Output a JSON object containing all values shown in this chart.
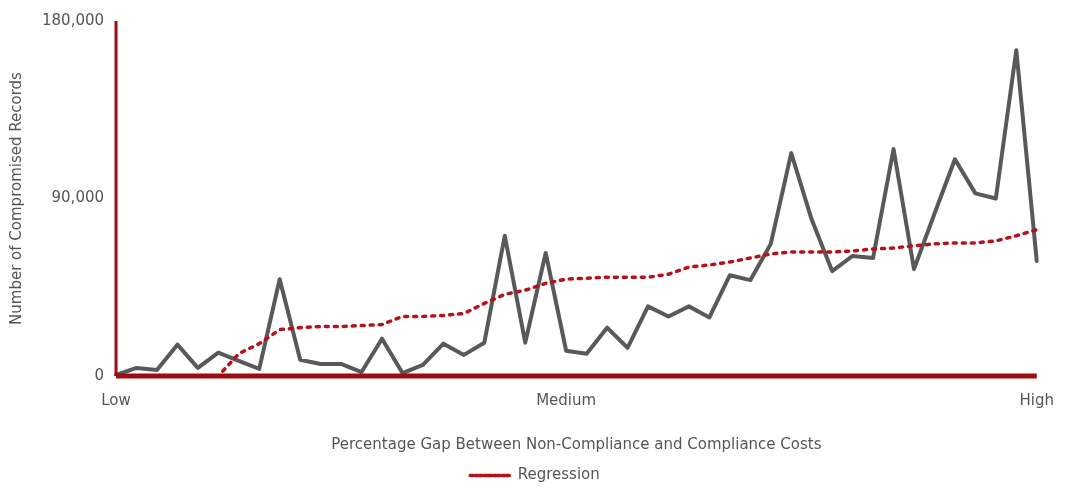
{
  "chart_data": {
    "type": "line",
    "xlabel": "Percentage Gap Between Non-Compliance and Compliance Costs",
    "ylabel": "Number of Compromised Records",
    "categories": [
      "Low",
      null,
      null,
      null,
      null,
      null,
      null,
      null,
      null,
      null,
      null,
      null,
      null,
      null,
      null,
      null,
      null,
      null,
      null,
      null,
      null,
      null,
      "Medium",
      null,
      null,
      null,
      null,
      null,
      null,
      null,
      null,
      null,
      null,
      null,
      null,
      null,
      null,
      null,
      null,
      null,
      null,
      null,
      null,
      null,
      null,
      "High"
    ],
    "series": [
      {
        "color": "#58595b",
        "line_style": "solid",
        "values": [
          500,
          4100,
          3100,
          15900,
          4100,
          11800,
          7700,
          3600,
          49100,
          8200,
          6100,
          6100,
          2000,
          18900,
          1500,
          5600,
          16400,
          10700,
          16900,
          71100,
          16900,
          62400,
          12800,
          11300,
          24500,
          14300,
          35300,
          30200,
          35300,
          29700,
          51100,
          48600,
          67000,
          113000,
          79300,
          53200,
          60900,
          59800,
          115100,
          54200,
          82300,
          109900,
          92600,
          90000,
          165200,
          58300
        ]
      },
      {
        "name": "Regression",
        "color": "#b5121b",
        "line_style": "dotted",
        "values": [
          null,
          null,
          null,
          null,
          0,
          0,
          11300,
          16400,
          23500,
          24500,
          25100,
          25100,
          25600,
          26100,
          30200,
          30200,
          30700,
          31700,
          36800,
          41400,
          43500,
          47000,
          49100,
          49600,
          50100,
          50100,
          50100,
          51600,
          55200,
          56300,
          57800,
          59800,
          61900,
          62900,
          62900,
          62900,
          63400,
          64400,
          64900,
          66000,
          67000,
          67500,
          67500,
          68500,
          71100,
          74200
        ]
      }
    ],
    "ylim": [
      0,
      180000
    ],
    "yticks": [
      0,
      {
        "value": 90000,
        "label": "90,000"
      },
      {
        "value": 180000,
        "label": "180,000"
      }
    ],
    "grid": false,
    "legend": "bottom",
    "marker": "none"
  }
}
